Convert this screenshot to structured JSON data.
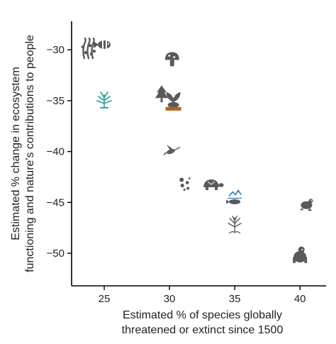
{
  "chart_data": {
    "type": "scatter",
    "title": "",
    "xlabel": [
      "Estimated % of species globally",
      "threatened or extinct since 1500"
    ],
    "ylabel": [
      "Estimated % change in ecosystem",
      "functioning and nature's contributions to people"
    ],
    "xlim": [
      22.5,
      42
    ],
    "ylim": [
      -53.2,
      -27.2
    ],
    "xticks": [
      25,
      30,
      35,
      40
    ],
    "yticks": [
      -30,
      -35,
      -40,
      -45,
      -50
    ],
    "grid": false,
    "legend": "none",
    "points": [
      {
        "label": "coral",
        "x": 23.8,
        "y": -30.0,
        "icon": "coral-icon"
      },
      {
        "label": "fish",
        "x": 25.0,
        "y": -29.5,
        "icon": "fish-icon"
      },
      {
        "label": "seagrass",
        "x": 25.0,
        "y": -35.0,
        "icon": "seagrass-icon"
      },
      {
        "label": "fungi",
        "x": 30.2,
        "y": -31.0,
        "icon": "mushroom-icon"
      },
      {
        "label": "trees",
        "x": 29.4,
        "y": -34.4,
        "icon": "tree-icon"
      },
      {
        "label": "plants and soil",
        "x": 30.3,
        "y": -35.0,
        "icon": "plant-icon"
      },
      {
        "label": "hummingbird",
        "x": 30.1,
        "y": -40.0,
        "icon": "hummingbird-icon"
      },
      {
        "label": "microbes",
        "x": 31.2,
        "y": -43.2,
        "icon": "microbes-icon"
      },
      {
        "label": "turtle",
        "x": 33.2,
        "y": -43.3,
        "icon": "turtle-icon"
      },
      {
        "label": "fish and river",
        "x": 35.0,
        "y": -44.8,
        "icon": "river-fish-icon"
      },
      {
        "label": "mangrove",
        "x": 35.0,
        "y": -47.2,
        "icon": "mangrove-icon"
      },
      {
        "label": "frog",
        "x": 40.5,
        "y": -45.2,
        "icon": "frog-icon"
      },
      {
        "label": "primate",
        "x": 40.0,
        "y": -50.2,
        "icon": "primate-icon"
      }
    ]
  },
  "colors": {
    "icon": "#5a5a5a",
    "axis": "#000000",
    "accent_teal": "#3aa59a",
    "accent_blue": "#2a7bc0",
    "accent_brown": "#b5651d"
  }
}
